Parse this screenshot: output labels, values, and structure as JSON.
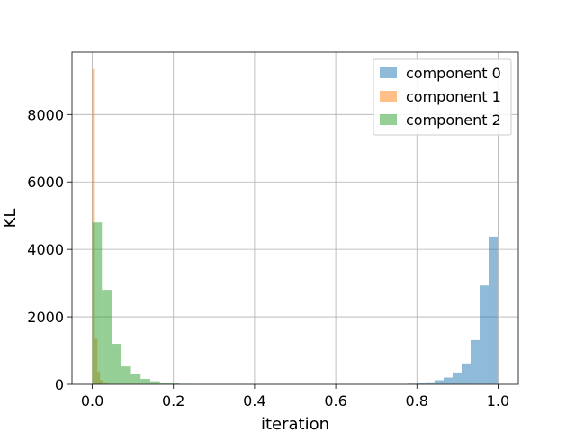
{
  "chart_data": {
    "type": "bar",
    "title": "",
    "xlabel": "iteration",
    "ylabel": "KL",
    "xlim": [
      -0.05,
      1.05
    ],
    "ylim": [
      0,
      9850
    ],
    "xticks": [
      "0.0",
      "0.2",
      "0.4",
      "0.6",
      "0.8",
      "1.0"
    ],
    "yticks": [
      "0",
      "2000",
      "4000",
      "6000",
      "8000"
    ],
    "grid": true,
    "legend_position": "top-right",
    "series": [
      {
        "name": "component 0",
        "color": "#1f77b4",
        "opacity": 0.5,
        "bin_start": 0.0,
        "bin_width": 0.0222,
        "counts": [
          40,
          0,
          0,
          0,
          0,
          0,
          0,
          0,
          0,
          0,
          0,
          0,
          0,
          0,
          0,
          0,
          0,
          0,
          0,
          0,
          0,
          0,
          0,
          0,
          0,
          0,
          0,
          0,
          0,
          0,
          0,
          0,
          5,
          10,
          0,
          20,
          30,
          60,
          120,
          200,
          350,
          620,
          1310,
          2930,
          4380
        ]
      },
      {
        "name": "component 1",
        "color": "#ff7f0e",
        "opacity": 0.5,
        "bin_start": 0.0,
        "bin_width": 0.0063,
        "counts": [
          9350,
          1350,
          380,
          120,
          60,
          30,
          20,
          10
        ]
      },
      {
        "name": "component 2",
        "color": "#2ca02c",
        "opacity": 0.5,
        "bin_start": 0.0,
        "bin_width": 0.0238,
        "counts": [
          4800,
          2800,
          1200,
          530,
          320,
          160,
          90,
          50,
          30,
          15,
          8,
          5,
          3
        ]
      }
    ]
  }
}
